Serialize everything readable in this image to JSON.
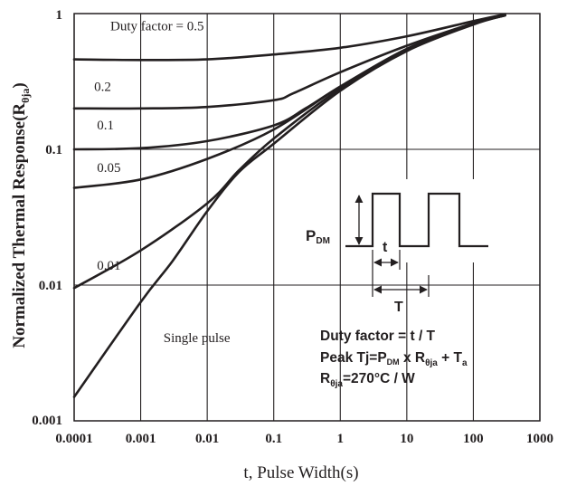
{
  "chart_data": {
    "type": "line",
    "title": "",
    "xlabel": "t, Pulse Width(s)",
    "ylabel_main": "Normalized Thermal Response(R",
    "ylabel_sub": "θja",
    "ylabel_close": ")",
    "x_scale": "log",
    "y_scale": "log",
    "xlim": [
      0.0001,
      1000
    ],
    "ylim": [
      0.001,
      1
    ],
    "x_ticks": [
      {
        "value": 0.0001,
        "label": "0.0001"
      },
      {
        "value": 0.001,
        "label": "0.001"
      },
      {
        "value": 0.01,
        "label": "0.01"
      },
      {
        "value": 0.1,
        "label": "0.1"
      },
      {
        "value": 1,
        "label": "1"
      },
      {
        "value": 10,
        "label": "10"
      },
      {
        "value": 100,
        "label": "100"
      },
      {
        "value": 1000,
        "label": "1000"
      }
    ],
    "y_ticks": [
      {
        "value": 1,
        "label": "1"
      },
      {
        "value": 0.1,
        "label": "0.1"
      },
      {
        "value": 0.01,
        "label": "0.01"
      },
      {
        "value": 0.001,
        "label": "0.001"
      }
    ],
    "grid": true,
    "series": [
      {
        "name": "Duty factor = 0.5",
        "label_at": [
          0.00035,
          0.75
        ],
        "points": [
          [
            0.0001,
            0.46
          ],
          [
            0.001,
            0.455
          ],
          [
            0.01,
            0.46
          ],
          [
            0.1,
            0.5
          ],
          [
            1,
            0.56
          ],
          [
            10,
            0.68
          ],
          [
            100,
            0.88
          ],
          [
            300,
            0.99
          ]
        ]
      },
      {
        "name": "0.2",
        "label_at": [
          0.0002,
          0.27
        ],
        "points": [
          [
            0.0001,
            0.2
          ],
          [
            0.001,
            0.2
          ],
          [
            0.01,
            0.205
          ],
          [
            0.1,
            0.23
          ],
          [
            0.2,
            0.26
          ],
          [
            1,
            0.37
          ],
          [
            10,
            0.58
          ],
          [
            100,
            0.85
          ],
          [
            300,
            0.98
          ]
        ]
      },
      {
        "name": "0.1",
        "label_at": [
          0.00022,
          0.14
        ],
        "points": [
          [
            0.0001,
            0.1
          ],
          [
            0.001,
            0.102
          ],
          [
            0.01,
            0.115
          ],
          [
            0.1,
            0.15
          ],
          [
            0.3,
            0.2
          ],
          [
            1,
            0.29
          ],
          [
            10,
            0.55
          ],
          [
            100,
            0.84
          ],
          [
            300,
            0.97
          ]
        ]
      },
      {
        "name": "0.05",
        "label_at": [
          0.00022,
          0.068
        ],
        "points": [
          [
            0.0001,
            0.052
          ],
          [
            0.001,
            0.06
          ],
          [
            0.01,
            0.085
          ],
          [
            0.1,
            0.14
          ],
          [
            1,
            0.29
          ],
          [
            10,
            0.54
          ],
          [
            100,
            0.84
          ],
          [
            300,
            0.97
          ]
        ]
      },
      {
        "name": "0.01",
        "label_at": [
          0.00022,
          0.013
        ],
        "points": [
          [
            0.0001,
            0.0095
          ],
          [
            0.001,
            0.018
          ],
          [
            0.01,
            0.04
          ],
          [
            0.03,
            0.07
          ],
          [
            0.1,
            0.12
          ],
          [
            1,
            0.28
          ],
          [
            10,
            0.54
          ],
          [
            100,
            0.84
          ],
          [
            300,
            0.97
          ]
        ]
      },
      {
        "name": "Single pulse",
        "label_at": [
          0.0022,
          0.0038
        ],
        "points": [
          [
            0.0001,
            0.0015
          ],
          [
            0.001,
            0.0075
          ],
          [
            0.003,
            0.015
          ],
          [
            0.01,
            0.035
          ],
          [
            0.03,
            0.068
          ],
          [
            0.1,
            0.11
          ],
          [
            1,
            0.27
          ],
          [
            10,
            0.53
          ],
          [
            100,
            0.83
          ],
          [
            300,
            0.97
          ]
        ]
      }
    ],
    "annotations": {
      "pdm_main": "P",
      "pdm_sub": "DM",
      "t_label": "t",
      "T_label": "T",
      "duty_line": "Duty factor = t / T",
      "peak_parts": [
        "Peak Tj=P",
        "DM",
        " x R",
        "θja",
        " + T",
        "a"
      ],
      "rtheta_parts": [
        "R",
        "θja",
        "=270°C / W"
      ]
    }
  }
}
